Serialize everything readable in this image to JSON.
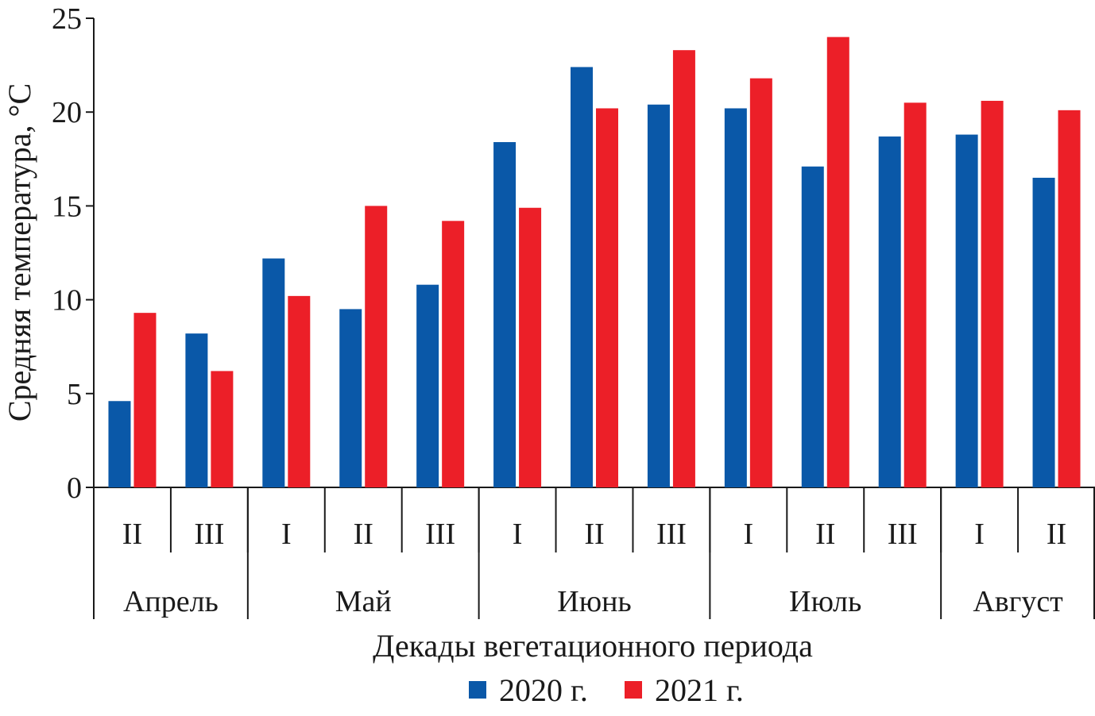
{
  "chart_data": {
    "type": "bar",
    "title": "",
    "ylabel": "Средняя температура, °C",
    "xlabel": "Декады вегетационного периода",
    "ylim": [
      0,
      25
    ],
    "yticks": [
      0,
      5,
      10,
      15,
      20,
      25
    ],
    "grid": false,
    "legend_position": "bottom-center",
    "categories": [
      "II",
      "III",
      "I",
      "II",
      "III",
      "I",
      "II",
      "III",
      "I",
      "II",
      "III",
      "I",
      "II"
    ],
    "groups": [
      {
        "label": "Апрель",
        "count": 2
      },
      {
        "label": "Май",
        "count": 3
      },
      {
        "label": "Июнь",
        "count": 3
      },
      {
        "label": "Июль",
        "count": 3
      },
      {
        "label": "Август",
        "count": 2
      }
    ],
    "series": [
      {
        "name": "2020 г.",
        "color": "#0a58a8",
        "values": [
          4.6,
          8.2,
          12.2,
          9.5,
          10.8,
          18.4,
          22.4,
          20.4,
          20.2,
          17.1,
          18.7,
          18.8,
          16.5
        ]
      },
      {
        "name": "2021 г.",
        "color": "#ec1f28",
        "values": [
          9.3,
          6.2,
          10.2,
          15.0,
          14.2,
          14.9,
          20.2,
          23.3,
          21.8,
          24.0,
          20.5,
          20.6,
          20.1
        ]
      }
    ]
  }
}
